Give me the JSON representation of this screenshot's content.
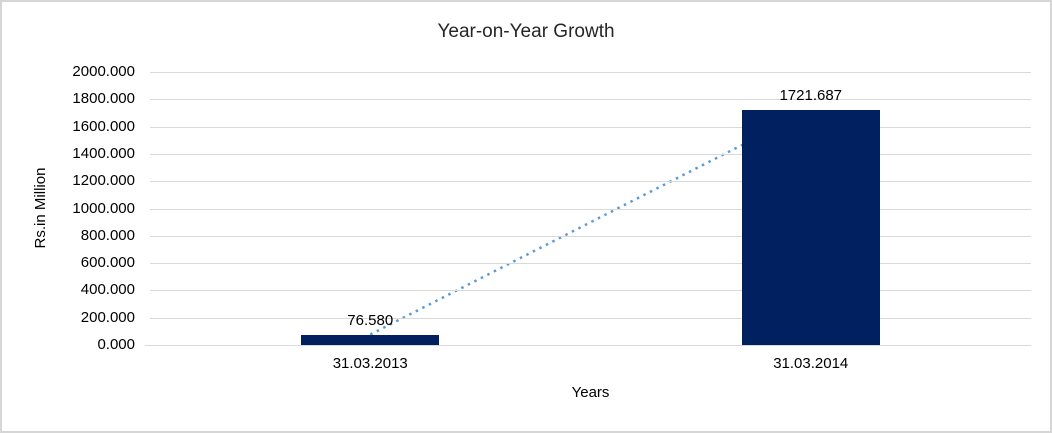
{
  "chart_data": {
    "type": "bar",
    "title": "Year-on-Year Growth",
    "xlabel": "Years",
    "ylabel": "Rs.in Million",
    "categories": [
      "31.03.2013",
      "31.03.2014"
    ],
    "values": [
      76.58,
      1721.687
    ],
    "data_labels": [
      "76.580",
      "1721.687"
    ],
    "ylim": [
      0,
      2000
    ],
    "yticks": [
      0,
      200,
      400,
      600,
      800,
      1000,
      1200,
      1400,
      1600,
      1800,
      2000
    ],
    "ytick_labels": [
      "0.000",
      "200.000",
      "400.000",
      "600.000",
      "800.000",
      "1000.000",
      "1200.000",
      "1400.000",
      "1600.000",
      "1800.000",
      "2000.000"
    ],
    "grid": true,
    "legend_position": "none",
    "trendline": {
      "style": "dotted",
      "connects": "bar-top to bar-top"
    },
    "colors": {
      "bar": "#002060",
      "trendline": "#5b9bd5",
      "gridline": "#d9d9d9",
      "text": "#000000",
      "title_text": "#262626",
      "border": "#d6d6d6"
    }
  }
}
